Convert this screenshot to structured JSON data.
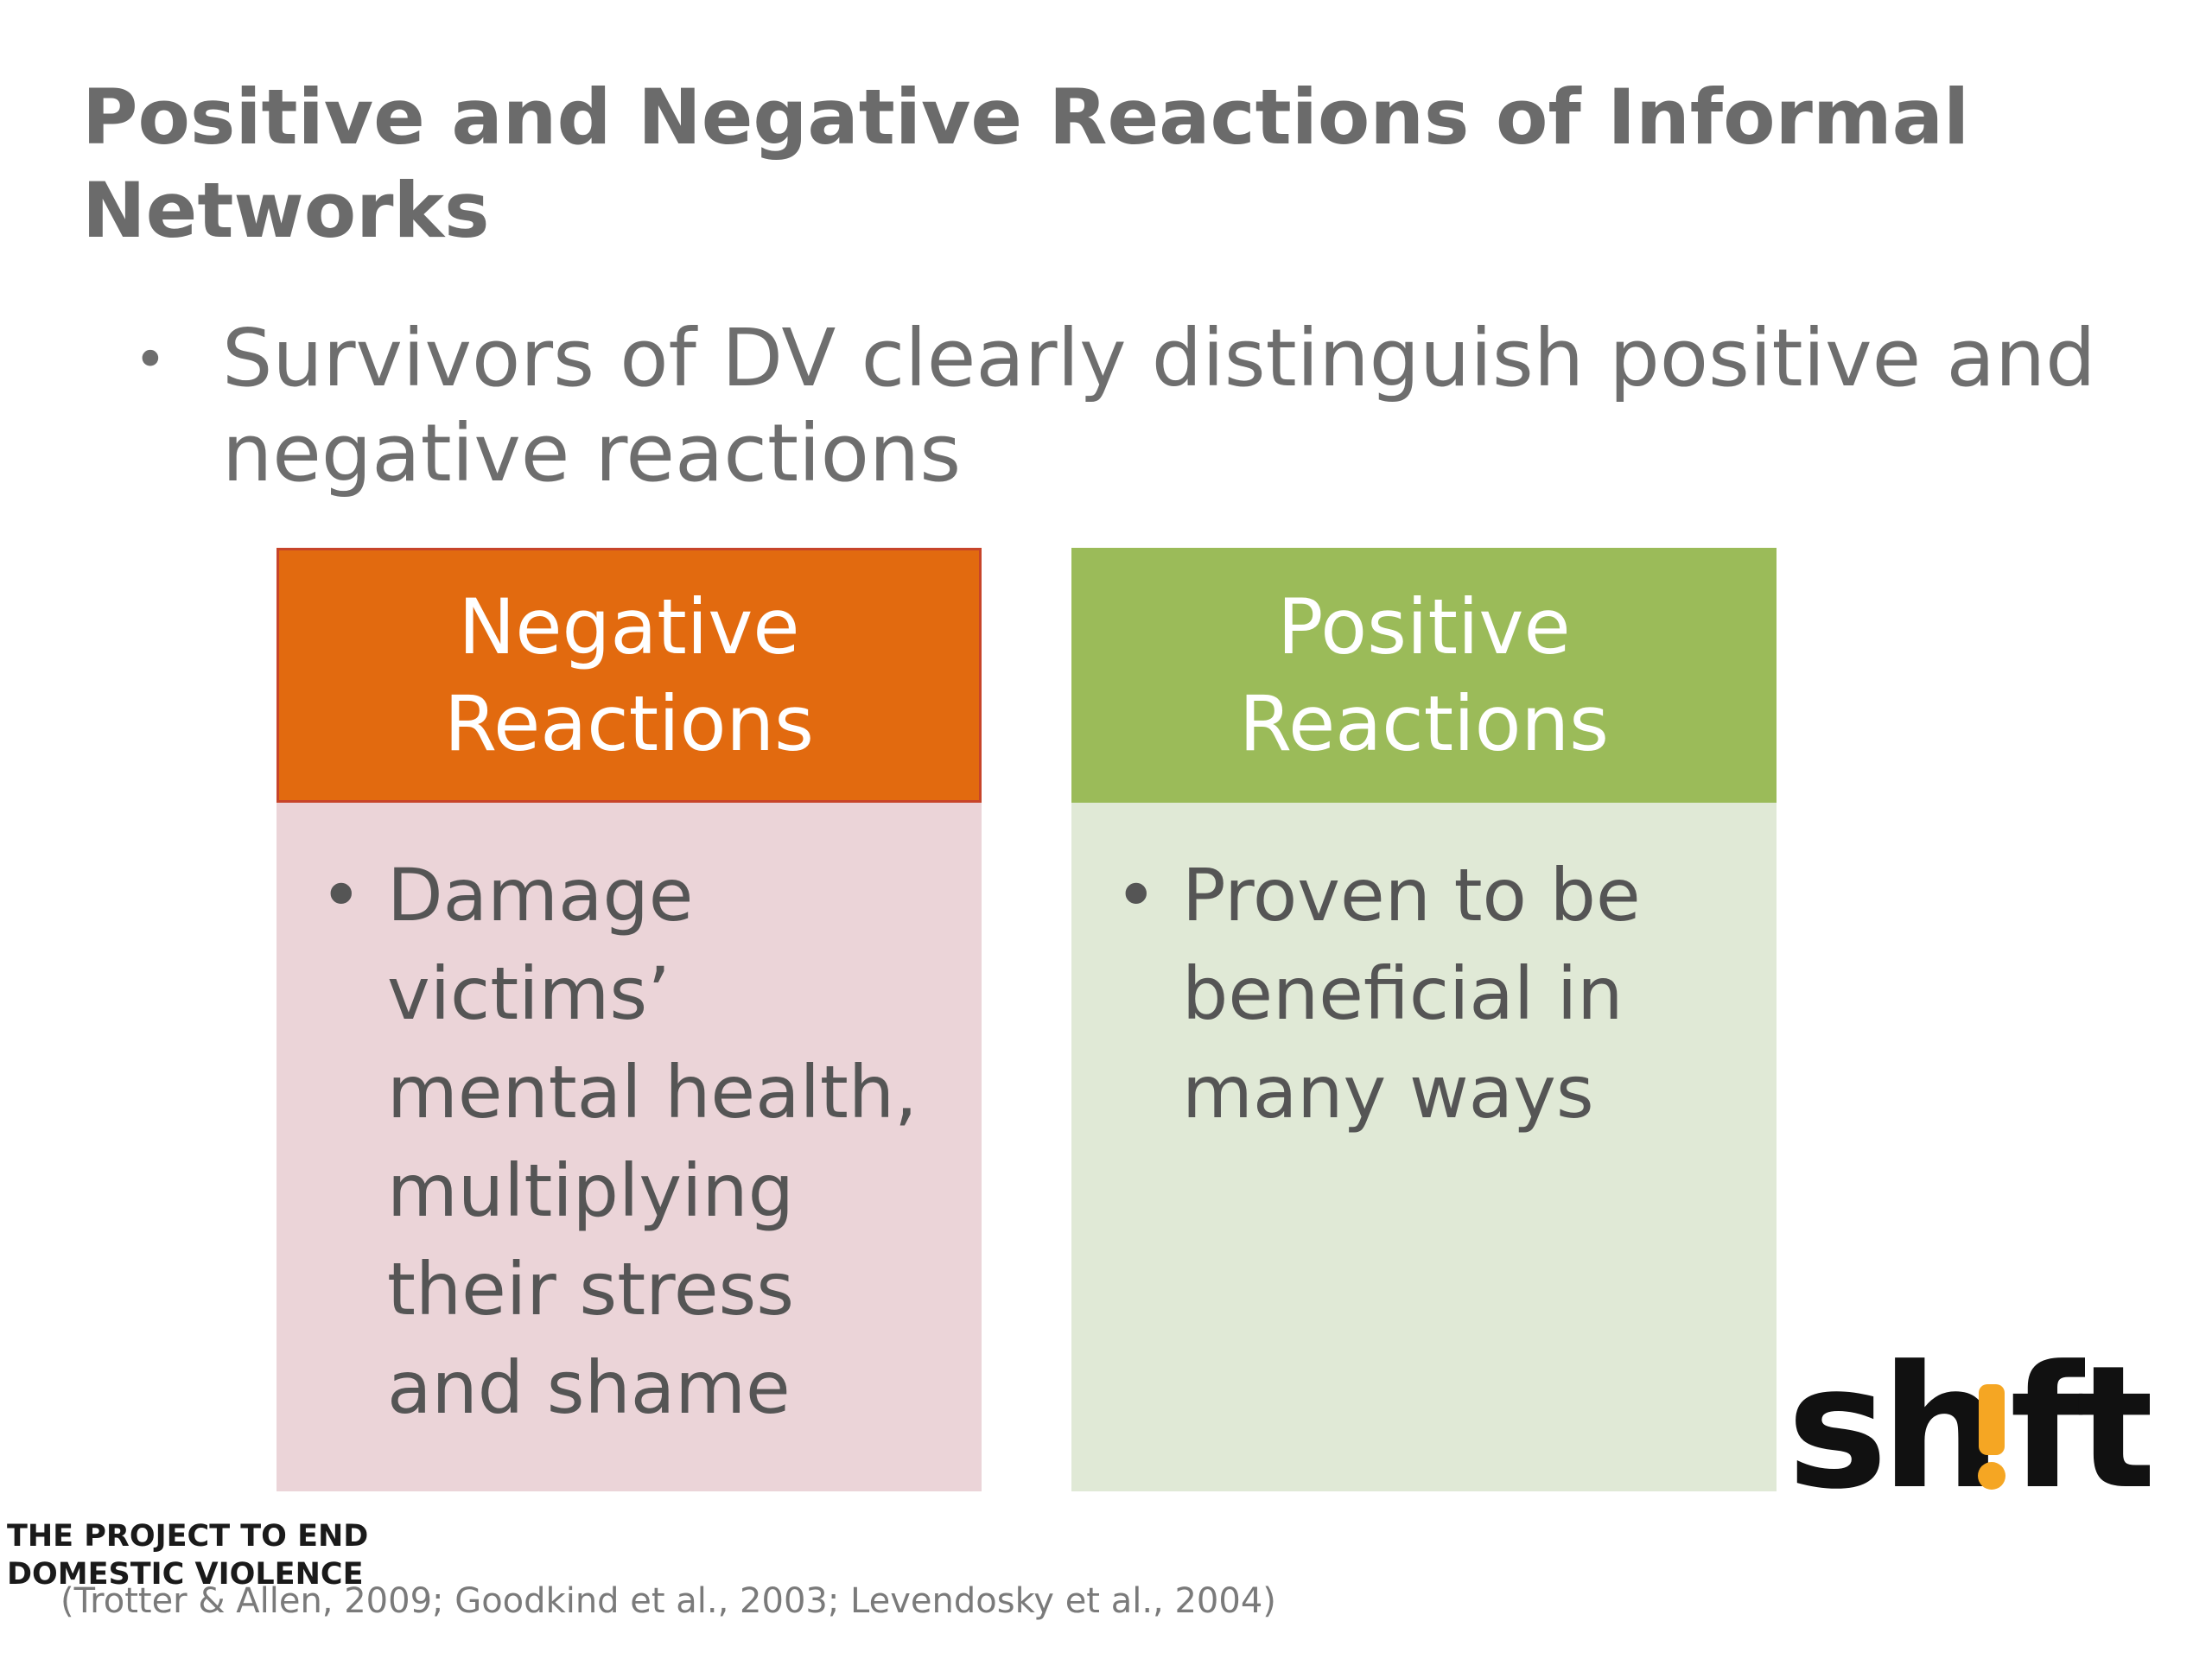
{
  "slide": {
    "title": "Positive and Negative Reactions of Informal Networks",
    "bullet": "Survivors of DV clearly distinguish positive and negative reactions",
    "cards": {
      "negative": {
        "heading": "Negative Reactions",
        "item": "Damage victims’ mental health, multiplying their stress and shame",
        "header_color": "#e26a0f",
        "body_color": "#ebd4d8"
      },
      "positive": {
        "heading": "Positive Reactions",
        "item": "Proven to be beneficial in many ways",
        "header_color": "#9bbb59",
        "body_color": "#e0e9d6"
      }
    },
    "logo": {
      "wordmark": "sh!ft",
      "tagline_line1": "THE PROJECT TO END",
      "tagline_line2": "DOMESTIC VIOLENCE",
      "accent_color": "#f5a623"
    },
    "citation": "(Trotter & Allen, 2009; Goodkind et al., 2003; Levendosky et al., 2004)"
  }
}
